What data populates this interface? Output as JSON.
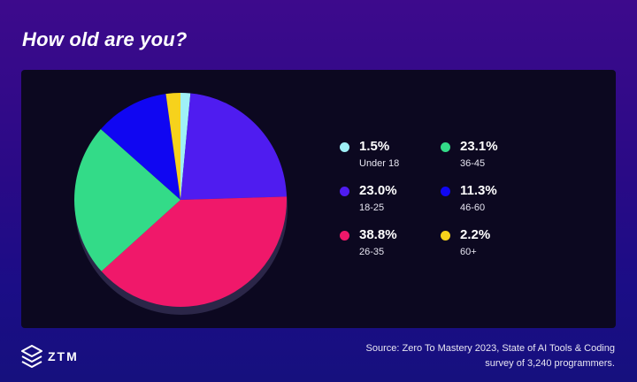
{
  "title": "How old are you?",
  "chart_data": {
    "type": "pie",
    "title": "How old are you?",
    "categories": [
      "Under 18",
      "18-25",
      "26-35",
      "36-45",
      "46-60",
      "60+"
    ],
    "values": [
      1.5,
      23.0,
      38.8,
      23.1,
      11.3,
      2.2
    ],
    "value_labels": [
      "1.5%",
      "23.0%",
      "38.8%",
      "23.1%",
      "11.3%",
      "2.2%"
    ],
    "colors": [
      "#9ff0f7",
      "#4f1cf0",
      "#f0186a",
      "#33db88",
      "#1006f2",
      "#f6d21c"
    ],
    "legend_placement": "right"
  },
  "legend": [
    {
      "pct": "1.5%",
      "label": "Under 18",
      "color": "#9ff0f7"
    },
    {
      "pct": "23.0%",
      "label": "18-25",
      "color": "#4f1cf0"
    },
    {
      "pct": "38.8%",
      "label": "26-35",
      "color": "#f0186a"
    },
    {
      "pct": "23.1%",
      "label": "36-45",
      "color": "#33db88"
    },
    {
      "pct": "11.3%",
      "label": "46-60",
      "color": "#1006f2"
    },
    {
      "pct": "2.2%",
      "label": "60+",
      "color": "#f6d21c"
    }
  ],
  "footer": {
    "logo_text": "ZTM",
    "source_line1": "Source: Zero To Mastery 2023, State of AI Tools & Coding",
    "source_line2": "survey of 3,240 programmers."
  }
}
